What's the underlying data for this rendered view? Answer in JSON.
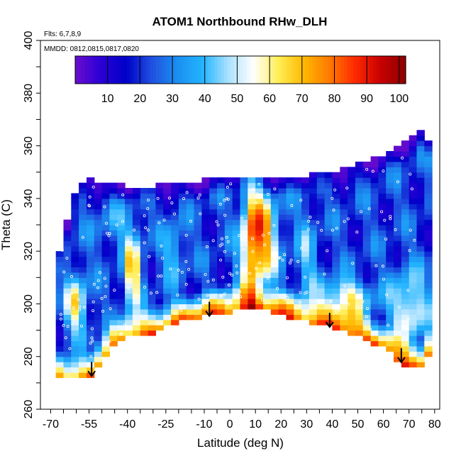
{
  "chart_data": {
    "type": "heatmap",
    "title": "ATOM1 Northbound RHw_DLH",
    "annotations": [
      "Flts: 6,7,8,9",
      "MMDD: 0812,0815,0817,0820"
    ],
    "xlabel": "Latitude (deg N)",
    "ylabel": "Theta (C)",
    "xlim": [
      -70,
      80
    ],
    "ylim": [
      260,
      400
    ],
    "x_ticks": [
      -70,
      -55,
      -40,
      -25,
      -10,
      0,
      10,
      20,
      30,
      40,
      50,
      60,
      70,
      80
    ],
    "y_ticks": [
      260,
      280,
      300,
      320,
      340,
      360,
      380,
      400
    ],
    "colorbar": {
      "range": [
        0,
        102
      ],
      "ticks": [
        10,
        20,
        30,
        40,
        50,
        60,
        70,
        80,
        90,
        100
      ],
      "colors": [
        "#6a0dcc",
        "#2b00d6",
        "#0000c8",
        "#1f4fe0",
        "#1b8ef0",
        "#22b4ff",
        "#a8e0ff",
        "#ffffff",
        "#ffee55",
        "#ffb800",
        "#ff7a00",
        "#ff2a00",
        "#c80000",
        "#8b0000"
      ]
    },
    "arrows_at_latitude": [
      -54,
      -8,
      39,
      67
    ],
    "boundary_top": [
      [
        -68,
        312
      ],
      [
        -64,
        330
      ],
      [
        -60,
        342
      ],
      [
        -55,
        348
      ],
      [
        -50,
        345
      ],
      [
        -40,
        344
      ],
      [
        -30,
        344
      ],
      [
        -20,
        345
      ],
      [
        -10,
        346
      ],
      [
        0,
        348
      ],
      [
        10,
        348
      ],
      [
        20,
        347
      ],
      [
        30,
        348
      ],
      [
        40,
        349
      ],
      [
        50,
        352
      ],
      [
        60,
        356
      ],
      [
        70,
        361
      ],
      [
        76,
        366
      ],
      [
        78,
        360
      ]
    ],
    "boundary_bottom": [
      [
        -68,
        272
      ],
      [
        -60,
        272
      ],
      [
        -55,
        272
      ],
      [
        -50,
        280
      ],
      [
        -45,
        285
      ],
      [
        -40,
        288
      ],
      [
        -30,
        290
      ],
      [
        -20,
        294
      ],
      [
        -10,
        296
      ],
      [
        0,
        298
      ],
      [
        10,
        299
      ],
      [
        20,
        297
      ],
      [
        30,
        294
      ],
      [
        40,
        292
      ],
      [
        50,
        289
      ],
      [
        60,
        284
      ],
      [
        65,
        280
      ],
      [
        70,
        277
      ],
      [
        74,
        276
      ],
      [
        78,
        282
      ],
      [
        80,
        300
      ]
    ]
  }
}
